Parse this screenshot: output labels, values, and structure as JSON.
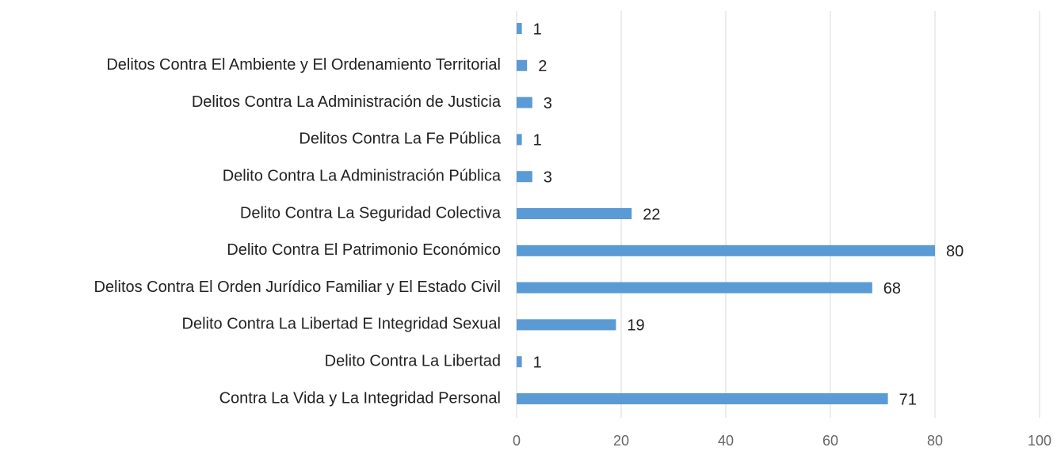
{
  "chart_data": {
    "type": "hbar",
    "categories": [
      "Contra La Vida y La Integridad Personal",
      "Delito Contra La Libertad",
      "Delito Contra La Libertad E Integridad Sexual",
      "Delitos Contra El Orden Jurídico Familiar y El Estado Civil",
      "Delito Contra El Patrimonio Económico",
      "Delito Contra La Seguridad Colectiva",
      "Delito Contra La Administración Pública",
      "Delitos Contra La Fe Pública",
      "Delitos Contra La Administración de Justicia",
      "Delitos Contra El Ambiente y El Ordenamiento Territorial",
      null
    ],
    "values": [
      71,
      1,
      19,
      68,
      80,
      22,
      3,
      1,
      3,
      2,
      1
    ],
    "color": "#5b9bd5",
    "xlim": [
      0,
      100
    ],
    "xticks": [
      0,
      20,
      40,
      60,
      80,
      100
    ],
    "grid": true
  }
}
